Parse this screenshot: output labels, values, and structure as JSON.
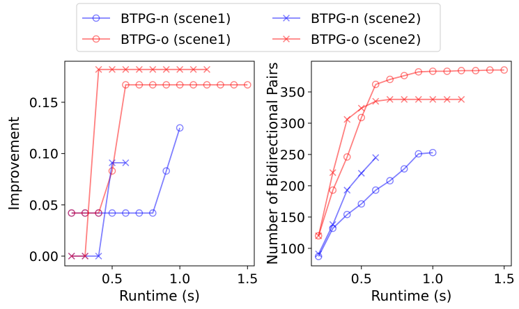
{
  "colors": {
    "blue": "#0000ff",
    "red": "#ff0000"
  },
  "legend": {
    "placement": "top-center",
    "entries": [
      {
        "label": "BTPG-n (scene1)",
        "color": "#0000ff",
        "marker": "circle"
      },
      {
        "label": "BTPG-o (scene1)",
        "color": "#ff0000",
        "marker": "circle"
      },
      {
        "label": "BTPG-n (scene2)",
        "color": "#0000ff",
        "marker": "x"
      },
      {
        "label": "BTPG-o (scene2)",
        "color": "#ff0000",
        "marker": "x"
      }
    ]
  },
  "chart_data": [
    {
      "type": "line",
      "xlabel": "Runtime (s)",
      "ylabel": "Improvement",
      "xlim": [
        0.15,
        1.55
      ],
      "ylim": [
        -0.0095,
        0.19
      ],
      "xticks": [
        0.5,
        1.0,
        1.5
      ],
      "xtick_labels": [
        "0.5",
        "1.0",
        "1.5"
      ],
      "yticks": [
        0.0,
        0.05,
        0.1,
        0.15
      ],
      "ytick_labels": [
        "0.00",
        "0.05",
        "0.10",
        "0.15"
      ],
      "grid": false,
      "series": [
        {
          "name": "BTPG-n (scene1)",
          "color": "#0000ff",
          "marker": "circle",
          "x": [
            0.2,
            0.3,
            0.4,
            0.5,
            0.6,
            0.7,
            0.8,
            0.9,
            1.0
          ],
          "y": [
            0.042,
            0.042,
            0.042,
            0.042,
            0.042,
            0.042,
            0.042,
            0.083,
            0.125
          ]
        },
        {
          "name": "BTPG-o (scene1)",
          "color": "#ff0000",
          "marker": "circle",
          "x": [
            0.2,
            0.3,
            0.4,
            0.5,
            0.6,
            0.7,
            0.8,
            0.9,
            1.0,
            1.1,
            1.2,
            1.3,
            1.4,
            1.5
          ],
          "y": [
            0.042,
            0.042,
            0.042,
            0.083,
            0.167,
            0.167,
            0.167,
            0.167,
            0.167,
            0.167,
            0.167,
            0.167,
            0.167,
            0.167
          ]
        },
        {
          "name": "BTPG-n (scene2)",
          "color": "#0000ff",
          "marker": "x",
          "x": [
            0.2,
            0.3,
            0.4,
            0.5,
            0.6
          ],
          "y": [
            0.0,
            0.0,
            0.0,
            0.091,
            0.091
          ]
        },
        {
          "name": "BTPG-o (scene2)",
          "color": "#ff0000",
          "marker": "x",
          "x": [
            0.2,
            0.3,
            0.4,
            0.5,
            0.6,
            0.7,
            0.8,
            0.9,
            1.0,
            1.1,
            1.2
          ],
          "y": [
            0.0,
            0.0,
            0.182,
            0.182,
            0.182,
            0.182,
            0.182,
            0.182,
            0.182,
            0.182,
            0.182
          ]
        }
      ]
    },
    {
      "type": "line",
      "xlabel": "Runtime (s)",
      "ylabel": "Number of Bidirectional Pairs",
      "xlim": [
        0.15,
        1.55
      ],
      "ylim": [
        72,
        399
      ],
      "xticks": [
        0.5,
        1.0,
        1.5
      ],
      "xtick_labels": [
        "0.5",
        "1.0",
        "1.5"
      ],
      "yticks": [
        100,
        150,
        200,
        250,
        300,
        350
      ],
      "ytick_labels": [
        "100",
        "150",
        "200",
        "250",
        "300",
        "350"
      ],
      "grid": false,
      "series": [
        {
          "name": "BTPG-n (scene1)",
          "color": "#0000ff",
          "marker": "circle",
          "x": [
            0.2,
            0.3,
            0.4,
            0.5,
            0.6,
            0.7,
            0.8,
            0.9,
            1.0
          ],
          "y": [
            87,
            132,
            154,
            171,
            193,
            208,
            227,
            251,
            253
          ]
        },
        {
          "name": "BTPG-o (scene1)",
          "color": "#ff0000",
          "marker": "circle",
          "x": [
            0.2,
            0.3,
            0.4,
            0.5,
            0.6,
            0.7,
            0.8,
            0.9,
            1.0,
            1.1,
            1.2,
            1.3,
            1.4,
            1.5
          ],
          "y": [
            120,
            193,
            246,
            309,
            362,
            370,
            376,
            382,
            383,
            383,
            384,
            384,
            385,
            385
          ]
        },
        {
          "name": "BTPG-n (scene2)",
          "color": "#0000ff",
          "marker": "x",
          "x": [
            0.2,
            0.3,
            0.4,
            0.5,
            0.6
          ],
          "y": [
            91,
            138,
            193,
            220,
            245
          ]
        },
        {
          "name": "BTPG-o (scene2)",
          "color": "#ff0000",
          "marker": "x",
          "x": [
            0.2,
            0.3,
            0.4,
            0.5,
            0.6,
            0.7,
            0.8,
            0.9,
            1.0,
            1.1,
            1.2
          ],
          "y": [
            120,
            221,
            306,
            324,
            335,
            338,
            338,
            338,
            338,
            338,
            338
          ]
        }
      ]
    }
  ]
}
